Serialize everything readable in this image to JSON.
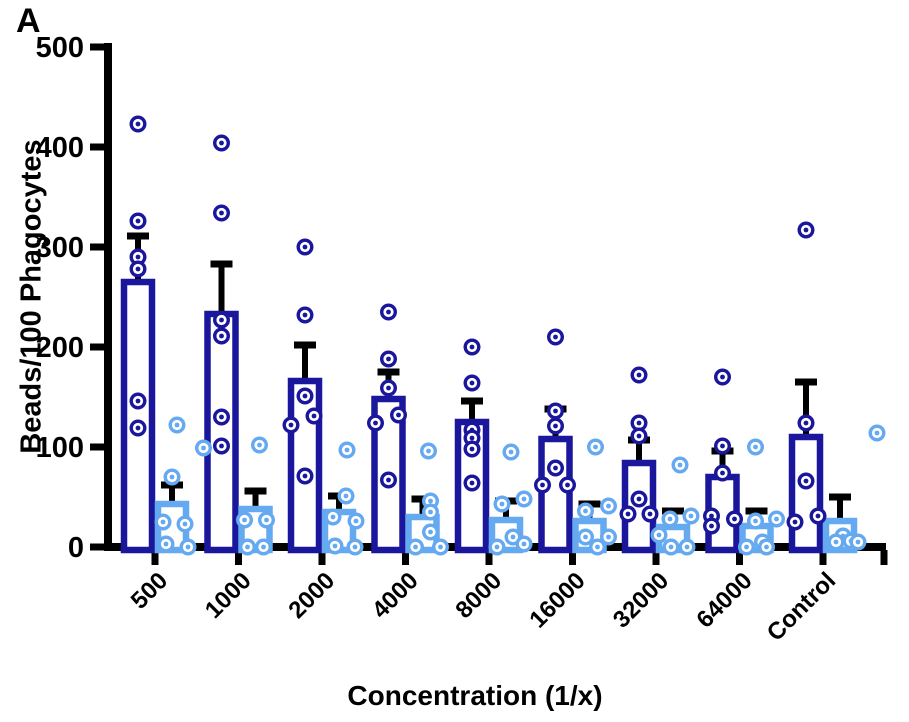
{
  "chart_data": {
    "type": "bar",
    "panel_label": "A",
    "xlabel": "Concentration (1/x)",
    "ylabel": "Beads/100 Phagocytes",
    "ylim": [
      0,
      500
    ],
    "yticks": [
      0,
      100,
      200,
      300,
      400,
      500
    ],
    "grid": "off",
    "legend": "none",
    "error_bars": "SEM, upper only, black caps",
    "bar_style": "open bars (white fill, colored outline) with overlaid open-circle scatter points",
    "categories": [
      "500",
      "1000",
      "2000",
      "4000",
      "8000",
      "16000",
      "32000",
      "64000",
      "Control"
    ],
    "series": [
      {
        "name": "dark-blue-series",
        "color": "#1b179c",
        "means": [
          265,
          233,
          166,
          148,
          125,
          108,
          84,
          70,
          110
        ],
        "sem": [
          46,
          50,
          36,
          27,
          21,
          30,
          23,
          26,
          55
        ],
        "points": [
          [
            [
              423,
              0
            ],
            [
              326,
              0
            ],
            [
              290,
              0
            ],
            [
              278,
              0
            ],
            [
              146,
              0
            ],
            [
              119,
              0
            ]
          ],
          [
            [
              404,
              0
            ],
            [
              334,
              0
            ],
            [
              227,
              0
            ],
            [
              211,
              0
            ],
            [
              130,
              0
            ],
            [
              101,
              0
            ]
          ],
          [
            [
              300,
              0
            ],
            [
              232,
              0
            ],
            [
              151,
              0
            ],
            [
              131,
              9
            ],
            [
              122,
              -14
            ],
            [
              71,
              0
            ]
          ],
          [
            [
              235,
              0
            ],
            [
              188,
              0
            ],
            [
              159,
              0
            ],
            [
              132,
              10
            ],
            [
              124,
              -13
            ],
            [
              67,
              0
            ]
          ],
          [
            [
              200,
              0
            ],
            [
              164,
              0
            ],
            [
              117,
              0
            ],
            [
              109,
              0
            ],
            [
              98,
              0
            ],
            [
              64,
              0
            ]
          ],
          [
            [
              210,
              0
            ],
            [
              136,
              0
            ],
            [
              121,
              0
            ],
            [
              79,
              0
            ],
            [
              62,
              -13
            ],
            [
              62,
              12
            ]
          ],
          [
            [
              172,
              0
            ],
            [
              124,
              0
            ],
            [
              111,
              0
            ],
            [
              48,
              0
            ],
            [
              33,
              -11
            ],
            [
              33,
              11
            ]
          ],
          [
            [
              170,
              0
            ],
            [
              101,
              0
            ],
            [
              74,
              0
            ],
            [
              31,
              -11
            ],
            [
              28,
              12
            ],
            [
              21,
              -11
            ]
          ],
          [
            [
              317,
              0
            ],
            [
              124,
              0
            ],
            [
              66,
              0
            ],
            [
              31,
              12
            ],
            [
              25,
              -11
            ]
          ]
        ]
      },
      {
        "name": "light-blue-series",
        "color": "#65a9f0",
        "means": [
          43,
          38,
          35,
          30,
          27,
          26,
          20,
          21,
          26
        ],
        "sem": [
          19,
          18,
          16,
          18,
          19,
          17,
          16,
          15,
          24
        ],
        "points": [
          [
            [
              122,
              5
            ],
            [
              70,
              0
            ],
            [
              25,
              -9
            ],
            [
              23,
              13
            ],
            [
              3,
              -6
            ],
            [
              0,
              16
            ]
          ],
          [
            [
              102,
              4
            ],
            [
              99,
              -52
            ],
            [
              27,
              -11
            ],
            [
              27,
              11
            ],
            [
              0,
              -8
            ],
            [
              0,
              8
            ]
          ],
          [
            [
              97,
              8
            ],
            [
              51,
              7
            ],
            [
              30,
              -6
            ],
            [
              26,
              17
            ],
            [
              1,
              -4
            ],
            [
              0,
              16
            ]
          ],
          [
            [
              96,
              6
            ],
            [
              46,
              8
            ],
            [
              35,
              8
            ],
            [
              15,
              8
            ],
            [
              0,
              -7
            ],
            [
              0,
              18
            ]
          ],
          [
            [
              95,
              5
            ],
            [
              48,
              18
            ],
            [
              43,
              -4
            ],
            [
              10,
              7
            ],
            [
              3,
              18
            ],
            [
              0,
              -9
            ]
          ],
          [
            [
              100,
              6
            ],
            [
              41,
              19
            ],
            [
              36,
              -4
            ],
            [
              10,
              -4
            ],
            [
              10,
              19
            ],
            [
              0,
              8
            ]
          ],
          [
            [
              82,
              7
            ],
            [
              31,
              18
            ],
            [
              28,
              -3
            ],
            [
              12,
              -14
            ],
            [
              0,
              -2
            ],
            [
              0,
              14
            ]
          ],
          [
            [
              100,
              -1
            ],
            [
              28,
              20
            ],
            [
              26,
              -1
            ],
            [
              5,
              6
            ],
            [
              0,
              -10
            ],
            [
              0,
              10
            ]
          ],
          [
            [
              114,
              37
            ],
            [
              11,
              3
            ],
            [
              6,
              11
            ],
            [
              5,
              -4
            ],
            [
              5,
              18
            ]
          ]
        ]
      }
    ],
    "axis_color": "#000000",
    "background_color": "#ffffff"
  }
}
